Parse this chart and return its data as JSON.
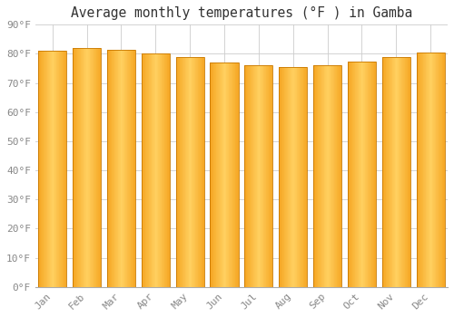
{
  "title": "Average monthly temperatures (°F ) in Gamba",
  "months": [
    "Jan",
    "Feb",
    "Mar",
    "Apr",
    "May",
    "Jun",
    "Jul",
    "Aug",
    "Sep",
    "Oct",
    "Nov",
    "Dec"
  ],
  "values": [
    81,
    82,
    81.5,
    80,
    79,
    77,
    76,
    75.5,
    76,
    77.5,
    79,
    80.5
  ],
  "ylim": [
    0,
    90
  ],
  "yticks": [
    0,
    10,
    20,
    30,
    40,
    50,
    60,
    70,
    80,
    90
  ],
  "ytick_labels": [
    "0°F",
    "10°F",
    "20°F",
    "30°F",
    "40°F",
    "50°F",
    "60°F",
    "70°F",
    "80°F",
    "90°F"
  ],
  "bar_color_left": "#F5A623",
  "bar_color_mid": "#FFD060",
  "bar_color_right": "#F5A623",
  "bar_edge_color": "#C87800",
  "background_color": "#FFFFFF",
  "grid_color": "#CCCCCC",
  "title_fontsize": 10.5,
  "tick_fontsize": 8,
  "font_family": "monospace",
  "tick_color": "#888888",
  "title_color": "#333333"
}
